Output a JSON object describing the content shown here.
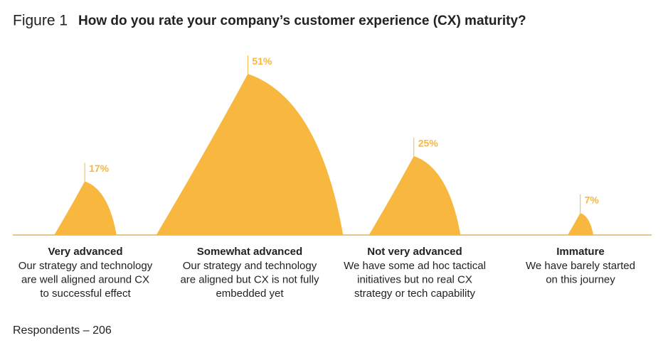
{
  "chart_data": {
    "type": "peak",
    "figure_label": "Figure 1",
    "title": "How do you rate your company’s customer experience (CX) maturity?",
    "categories": [
      "Very advanced",
      "Somewhat advanced",
      "Not very advanced",
      "Immature"
    ],
    "descriptions": [
      [
        "Our strategy and technology",
        "are well aligned around CX",
        "to successful effect"
      ],
      [
        "Our strategy and technology",
        "are aligned but CX is not fully",
        "embedded yet"
      ],
      [
        "We have some ad hoc tactical",
        "initiatives but no real CX",
        "strategy or tech capability"
      ],
      [
        "We have barely started",
        "on this journey"
      ]
    ],
    "values": [
      17,
      51,
      25,
      7
    ],
    "value_labels": [
      "17%",
      "51%",
      "25%",
      "7%"
    ],
    "color": "#f8b73f",
    "footnote": "Respondents – 206"
  }
}
